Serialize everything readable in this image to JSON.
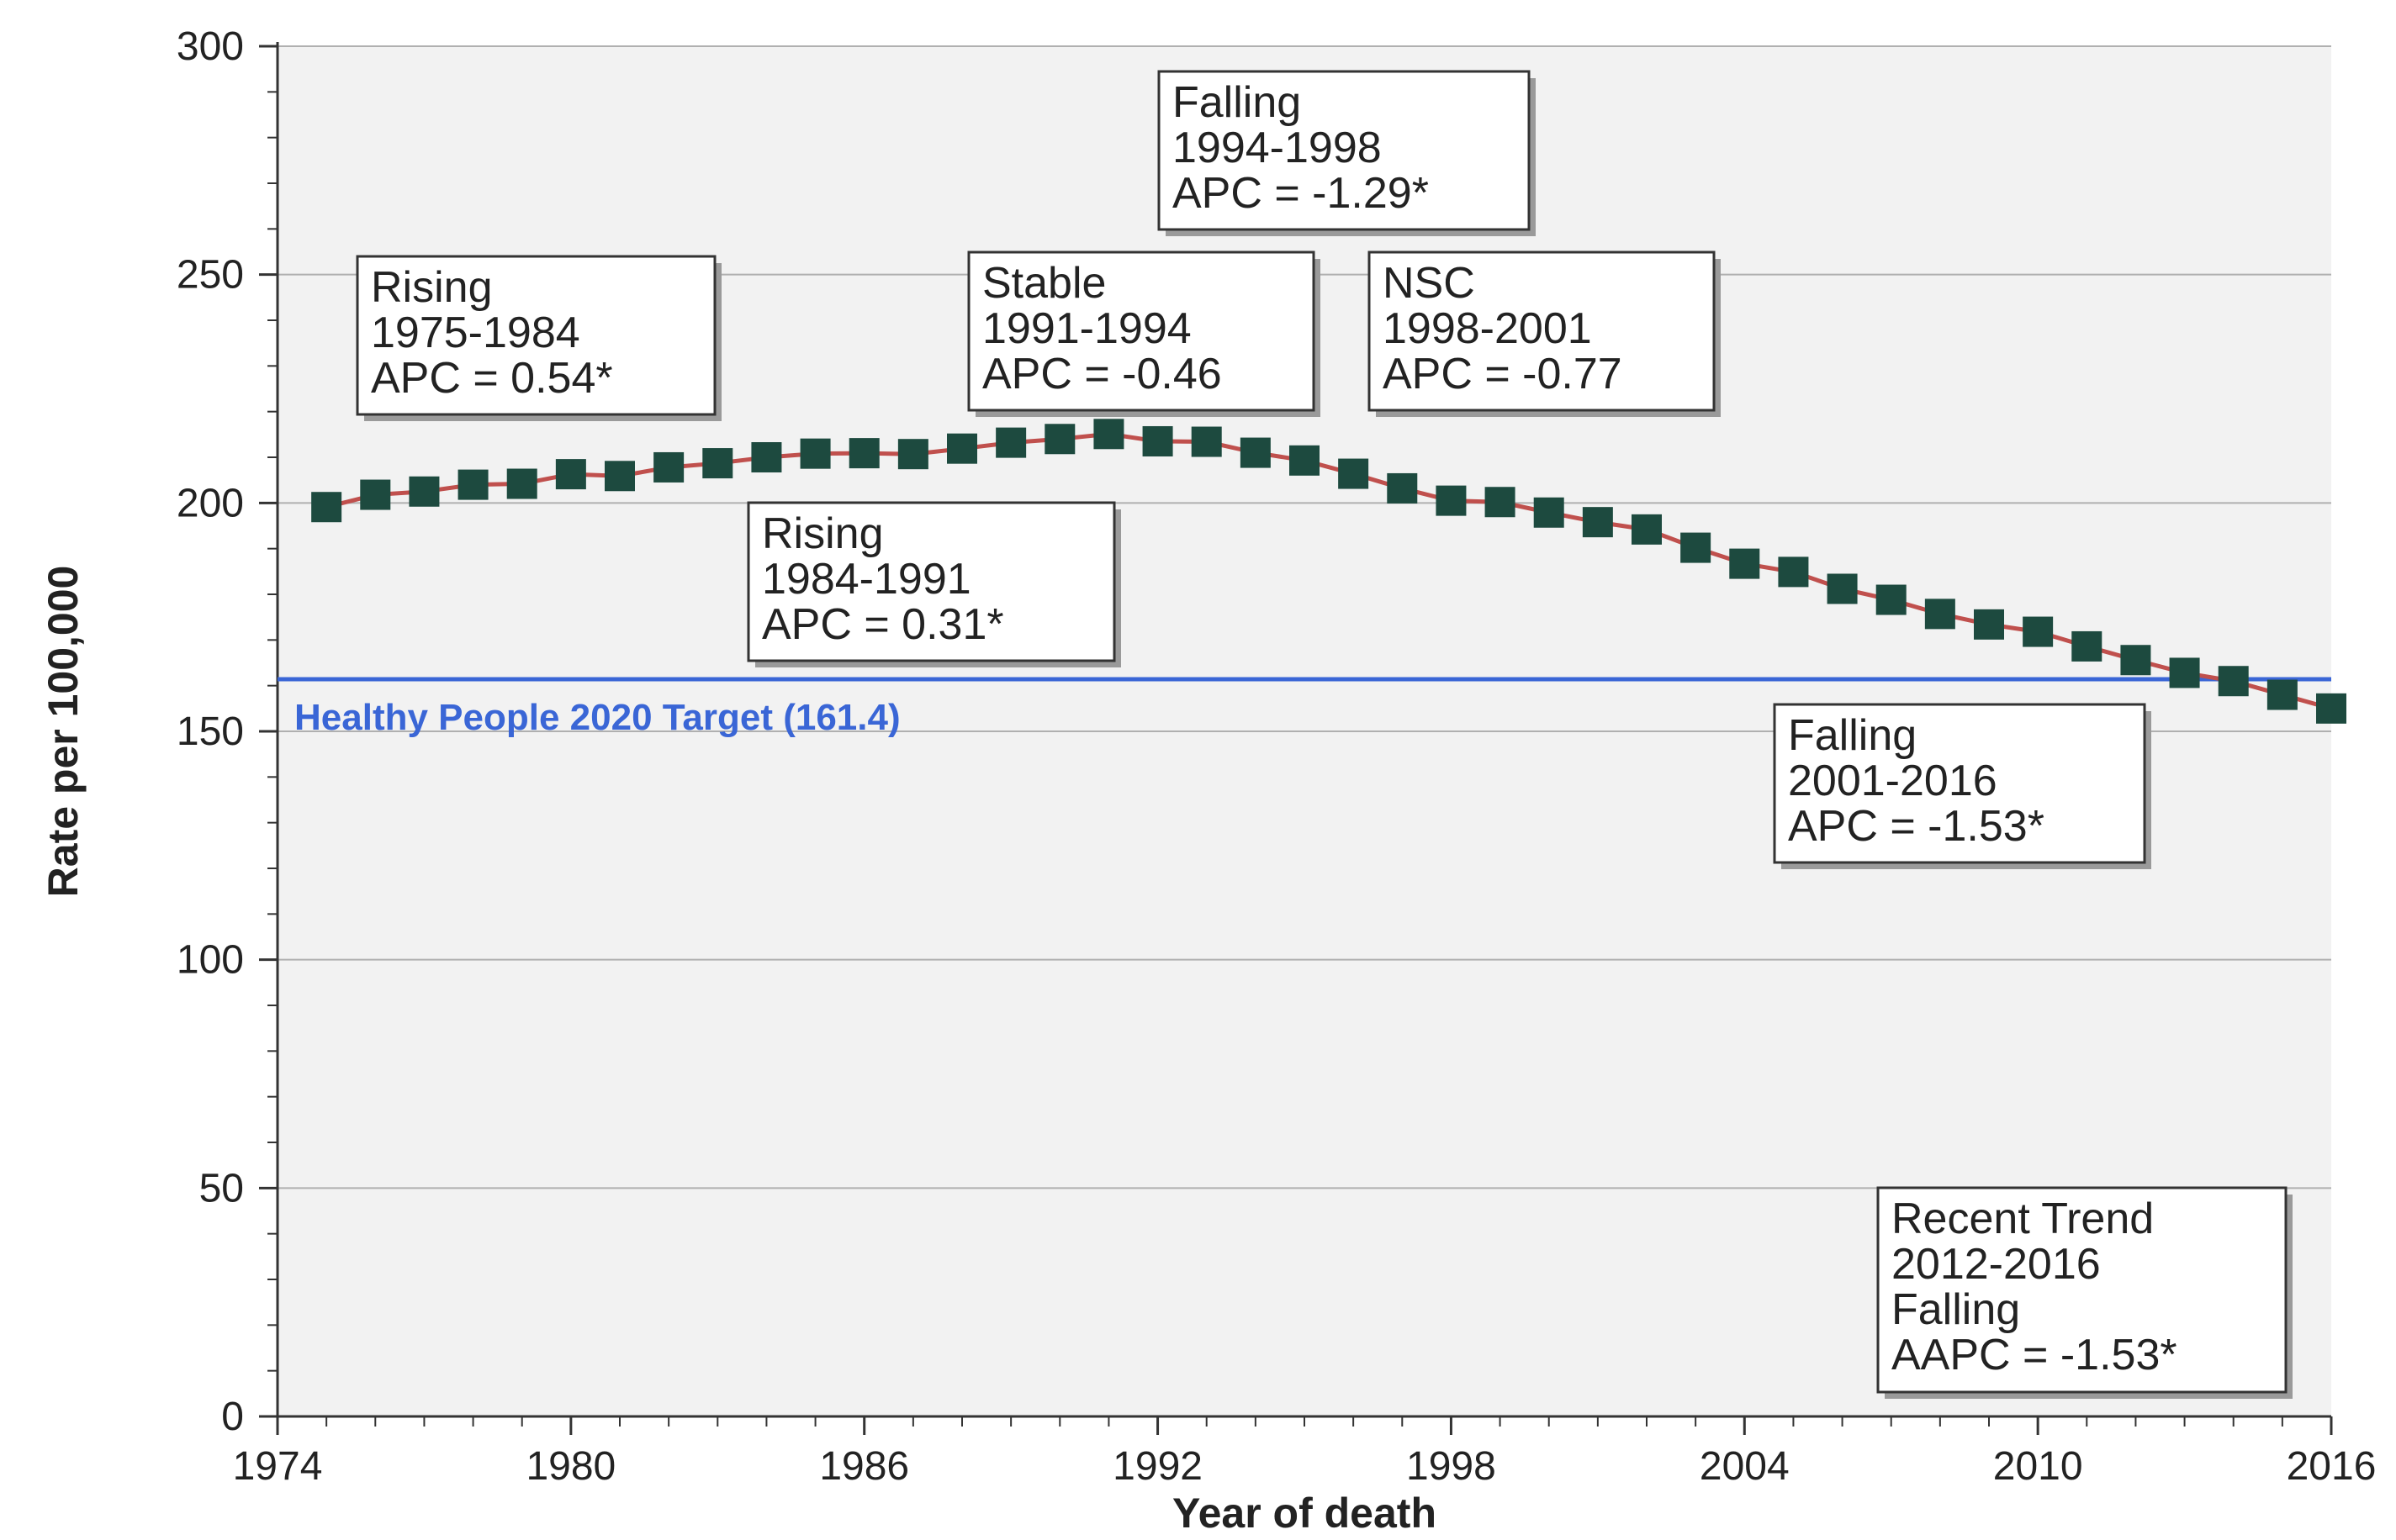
{
  "chart_data": {
    "type": "line",
    "xlabel": "Year of death",
    "ylabel": "Rate per 100,000",
    "xlim": [
      1974,
      2016
    ],
    "ylim": [
      0,
      300
    ],
    "xticks": [
      1974,
      1980,
      1986,
      1992,
      1998,
      2004,
      2010,
      2016
    ],
    "yticks": [
      0,
      50,
      100,
      150,
      200,
      250,
      300
    ],
    "grid": "horizontal",
    "colors": {
      "line": "#c0504d",
      "marker": "#1d4a3f",
      "target": "#3a66d6",
      "grid": "#b0b0b0",
      "plot_bg": "#f2f2f2"
    },
    "series": [
      {
        "x": [
          1975,
          1976,
          1977,
          1978,
          1979,
          1980,
          1981,
          1982,
          1983,
          1984,
          1985,
          1986,
          1987,
          1988,
          1989,
          1990,
          1991,
          1992,
          1993,
          1994,
          1995,
          1996,
          1997,
          1998,
          1999,
          2000,
          2001,
          2002,
          2003,
          2004,
          2005,
          2006,
          2007,
          2008,
          2009,
          2010,
          2011,
          2012,
          2013,
          2014,
          2015,
          2016
        ],
        "values": [
          199.1,
          201.8,
          202.5,
          204.0,
          204.2,
          206.3,
          205.9,
          207.8,
          208.7,
          210.0,
          210.8,
          210.9,
          210.7,
          211.9,
          213.2,
          214.0,
          215.1,
          213.5,
          213.4,
          211.0,
          209.3,
          206.4,
          203.2,
          200.5,
          200.2,
          197.9,
          195.8,
          194.2,
          190.2,
          186.7,
          184.9,
          181.2,
          178.8,
          175.7,
          173.4,
          171.8,
          168.6,
          165.6,
          162.8,
          161.0,
          158.0,
          155.0
        ]
      }
    ],
    "reference_line": {
      "value": 161.4,
      "label": "Healthy People 2020 Target (161.4)"
    },
    "annotations": [
      {
        "lines": [
          "Rising",
          "1975-1984",
          "APC =  0.54*"
        ]
      },
      {
        "lines": [
          "Rising",
          "1984-1991",
          "APC =  0.31*"
        ]
      },
      {
        "lines": [
          "Stable",
          "1991-1994",
          "APC = -0.46"
        ]
      },
      {
        "lines": [
          "Falling",
          "1994-1998",
          "APC = -1.29*"
        ]
      },
      {
        "lines": [
          "NSC",
          "1998-2001",
          "APC = -0.77"
        ]
      },
      {
        "lines": [
          "Falling",
          "2001-2016",
          "APC = -1.53*"
        ]
      },
      {
        "lines": [
          "Recent Trend",
          "2012-2016",
          "Falling",
          "AAPC = -1.53*"
        ]
      }
    ]
  }
}
